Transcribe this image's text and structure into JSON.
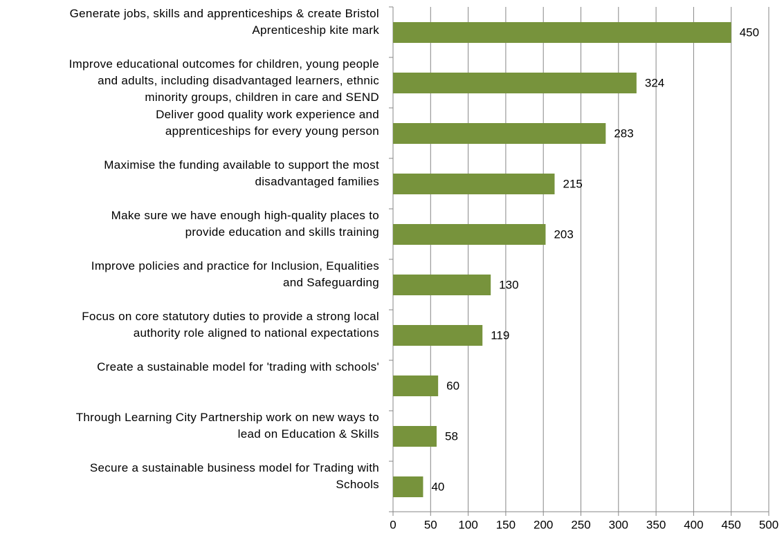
{
  "chart_data": {
    "type": "hbar",
    "categories": [
      "Generate jobs, skills and apprenticeships & create Bristol\nAprenticeship kite mark",
      "Improve educational outcomes for children, young people\nand adults, including disadvantaged learners, ethnic\nminority groups, children in care and SEND",
      "Deliver good quality work experience and\napprenticeships for every young person",
      "Maximise the funding available to support the most\ndisadvantaged families",
      "Make sure we have enough high-quality places to\nprovide education and skills training",
      "Improve policies and practice for Inclusion, Equalities\nand Safeguarding",
      "Focus on core statutory duties to provide a strong local\nauthority role aligned to national expectations",
      "Create a sustainable model for 'trading with schools'",
      "Through Learning City Partnership work on new ways to\nlead on Education & Skills",
      "Secure a sustainable business model for Trading with\nSchools"
    ],
    "values": [
      450,
      324,
      283,
      215,
      203,
      130,
      119,
      60,
      58,
      40
    ],
    "color": "#77933c",
    "xlim": [
      0,
      500
    ],
    "xticks": [
      0,
      50,
      100,
      150,
      200,
      250,
      300,
      350,
      400,
      450,
      500
    ],
    "grid": true
  }
}
